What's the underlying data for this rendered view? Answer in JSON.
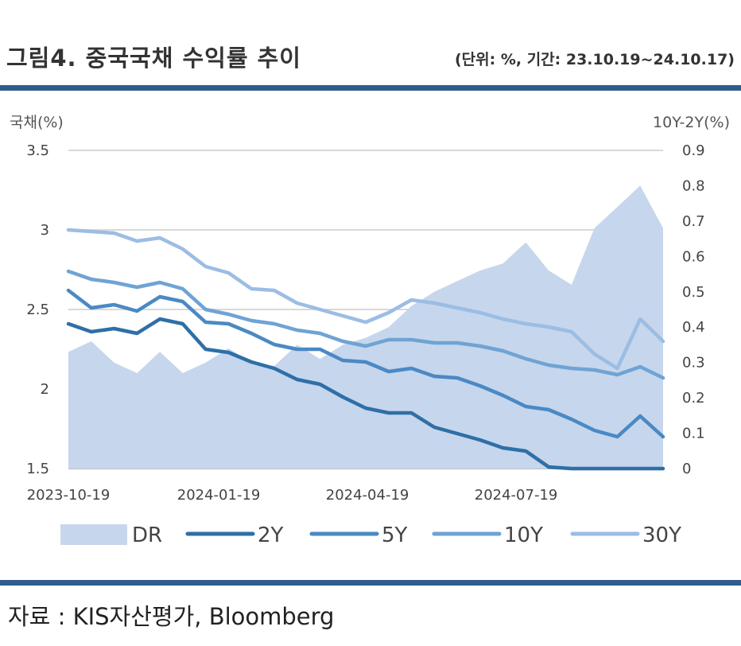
{
  "header": {
    "title": "그림4. 중국국채 수익률 추이",
    "unit": "(단위: %, 기간: 23.10.19~24.10.17)"
  },
  "source": "자료 : KIS자산평가, Bloomberg",
  "colors": {
    "bar": "#2e5d8c",
    "dr_fill": "#c6d6ec",
    "y2": "#2e6fa7",
    "y5": "#4a89c4",
    "y10": "#6fa3d4",
    "y30": "#9cbde3",
    "grid": "#d9d9d9"
  },
  "chart_data": {
    "type": "line",
    "ylabel_left": "국채(%)",
    "ylabel_right": "10Y-2Y(%)",
    "ylim_left": [
      1.5,
      3.5
    ],
    "ylim_right": [
      0,
      0.9
    ],
    "yticks_left": [
      "1.5",
      "2",
      "2.5",
      "3",
      "3.5"
    ],
    "yticks_right": [
      "0",
      "0.1",
      "0.2",
      "0.3",
      "0.4",
      "0.5",
      "0.6",
      "0.7",
      "0.8",
      "0.9"
    ],
    "xticks": [
      "2023-10-19",
      "2024-01-19",
      "2024-04-19",
      "2024-07-19"
    ],
    "xlim": [
      "2023-10-19",
      "2024-10-17"
    ],
    "grid": true,
    "legend_position": "bottom",
    "x": [
      "2023-10-19",
      "2023-11-02",
      "2023-11-16",
      "2023-11-30",
      "2023-12-14",
      "2023-12-28",
      "2024-01-11",
      "2024-01-25",
      "2024-02-08",
      "2024-02-22",
      "2024-03-07",
      "2024-03-21",
      "2024-04-04",
      "2024-04-18",
      "2024-05-02",
      "2024-05-16",
      "2024-05-30",
      "2024-06-13",
      "2024-06-27",
      "2024-07-11",
      "2024-07-25",
      "2024-08-08",
      "2024-08-22",
      "2024-09-05",
      "2024-09-19",
      "2024-10-03",
      "2024-10-17"
    ],
    "series": [
      {
        "name": "DR",
        "type": "area",
        "axis": "right",
        "values": [
          0.33,
          0.36,
          0.3,
          0.27,
          0.33,
          0.27,
          0.3,
          0.34,
          0.3,
          0.29,
          0.35,
          0.31,
          0.35,
          0.37,
          0.4,
          0.46,
          0.5,
          0.53,
          0.56,
          0.58,
          0.64,
          0.56,
          0.52,
          0.68,
          0.74,
          0.8,
          0.68
        ]
      },
      {
        "name": "2Y",
        "axis": "left",
        "values": [
          2.41,
          2.36,
          2.38,
          2.35,
          2.44,
          2.41,
          2.25,
          2.23,
          2.17,
          2.13,
          2.06,
          2.03,
          1.95,
          1.88,
          1.85,
          1.85,
          1.76,
          1.72,
          1.68,
          1.63,
          1.61,
          1.51,
          1.48,
          1.48,
          1.48,
          1.48,
          1.48
        ]
      },
      {
        "name": "5Y",
        "axis": "left",
        "values": [
          2.62,
          2.51,
          2.53,
          2.49,
          2.58,
          2.55,
          2.42,
          2.41,
          2.35,
          2.28,
          2.25,
          2.25,
          2.18,
          2.17,
          2.11,
          2.13,
          2.08,
          2.07,
          2.02,
          1.96,
          1.89,
          1.87,
          1.81,
          1.74,
          1.7,
          1.83,
          1.7
        ]
      },
      {
        "name": "10Y",
        "axis": "left",
        "values": [
          2.74,
          2.69,
          2.67,
          2.64,
          2.67,
          2.63,
          2.5,
          2.47,
          2.43,
          2.41,
          2.37,
          2.35,
          2.3,
          2.27,
          2.31,
          2.31,
          2.29,
          2.29,
          2.27,
          2.24,
          2.19,
          2.15,
          2.13,
          2.12,
          2.09,
          2.14,
          2.07
        ]
      },
      {
        "name": "30Y",
        "axis": "left",
        "values": [
          3.0,
          2.99,
          2.98,
          2.93,
          2.95,
          2.88,
          2.77,
          2.73,
          2.63,
          2.62,
          2.54,
          2.5,
          2.46,
          2.42,
          2.48,
          2.56,
          2.54,
          2.51,
          2.48,
          2.44,
          2.41,
          2.39,
          2.36,
          2.22,
          2.13,
          2.44,
          2.3
        ]
      }
    ]
  }
}
